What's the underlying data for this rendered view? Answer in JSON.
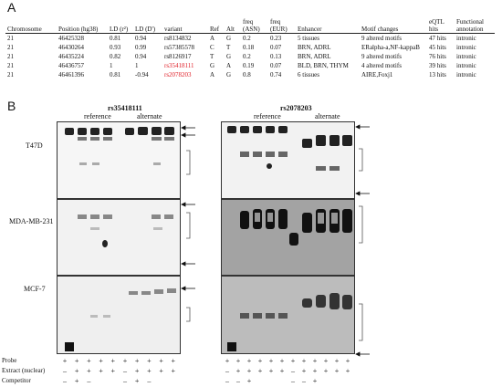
{
  "panelA": {
    "letter": "A",
    "headers": [
      "Chromosome",
      "Position (hg38)",
      "LD (r²)",
      "LD (D')",
      "variant",
      "Ref",
      "Alt",
      "freq (ASN)",
      "freq (EUR)",
      "Enhancer",
      "Motif changes",
      "eQTL hits",
      "Functional annotation"
    ],
    "rows": [
      {
        "chrom": "21",
        "pos": "46425328",
        "r2": "0.81",
        "d": "0.94",
        "variant": "rs8134832",
        "ref": "A",
        "alt": "G",
        "asn": "0.2",
        "eur": "0.23",
        "enh": "5 tissues",
        "motif": "9 altered motifs",
        "eqtl": "47 hits",
        "func": "intronic",
        "highlight": false
      },
      {
        "chrom": "21",
        "pos": "46430264",
        "r2": "0.93",
        "d": "0.99",
        "variant": "rs57385578",
        "ref": "C",
        "alt": "T",
        "asn": "0.18",
        "eur": "0.07",
        "enh": "BRN, ADRL",
        "motif": "ERalpha-a,NF-kappaB",
        "eqtl": "45 hits",
        "func": "intronic",
        "highlight": false
      },
      {
        "chrom": "21",
        "pos": "46435224",
        "r2": "0.82",
        "d": "0.94",
        "variant": "rs8126917",
        "ref": "T",
        "alt": "G",
        "asn": "0.2",
        "eur": "0.13",
        "enh": "BRN, ADRL",
        "motif": "9 altered motifs",
        "eqtl": "76 hits",
        "func": "intronic",
        "highlight": false
      },
      {
        "chrom": "21",
        "pos": "46436757",
        "r2": "1",
        "d": "1",
        "variant": "rs35418111",
        "ref": "G",
        "alt": "A",
        "asn": "0.19",
        "eur": "0.07",
        "enh": "BLD, BRN, THYM",
        "motif": "4 altered motifs",
        "eqtl": "39 hits",
        "func": "intronic",
        "highlight": true
      },
      {
        "chrom": "21",
        "pos": "46461396",
        "r2": "0.81",
        "d": "-0.94",
        "variant": "rs2078203",
        "ref": "A",
        "alt": "G",
        "asn": "0.8",
        "eur": "0.74",
        "enh": "6 tissues",
        "motif": "AIRE,Foxj1",
        "eqtl": "13 hits",
        "func": "intronic",
        "highlight": true
      }
    ],
    "highlight_color": "#e0212a"
  },
  "panelB": {
    "letter": "B",
    "left_title": "rs35418111",
    "right_title": "rs2078203",
    "left_reference": "reference",
    "left_alternate": "alternate",
    "right_reference": "reference",
    "right_alternate": "alternate",
    "cell_lines": [
      "T47D",
      "MDA-MB-231",
      "MCF-7"
    ],
    "row_labels": {
      "probe": "Probe",
      "extract": "Extract (nuclear)",
      "competitor": "Competitor"
    },
    "left_lanes": {
      "probe": [
        "+",
        "+",
        "+",
        "+",
        "+",
        "+",
        "+",
        "+",
        "+",
        "+"
      ],
      "extract": [
        "–",
        "+",
        "+",
        "+",
        "+",
        "–",
        "+",
        "+",
        "+",
        "+"
      ],
      "competitor": [
        "–",
        "+",
        "–",
        "",
        "",
        "–",
        "+",
        "–",
        "",
        ""
      ]
    },
    "right_lanes": {
      "probe": [
        "+",
        "+",
        "+",
        "+",
        "+",
        "+",
        "+",
        "+",
        "+",
        "+",
        "+",
        "+"
      ],
      "extract": [
        "–",
        "+",
        "+",
        "+",
        "+",
        "+",
        "–",
        "+",
        "+",
        "+",
        "+",
        "+"
      ],
      "competitor": [
        "–",
        "–",
        "+",
        "",
        "",
        "",
        "–",
        "–",
        "+",
        "",
        "",
        ""
      ]
    }
  }
}
